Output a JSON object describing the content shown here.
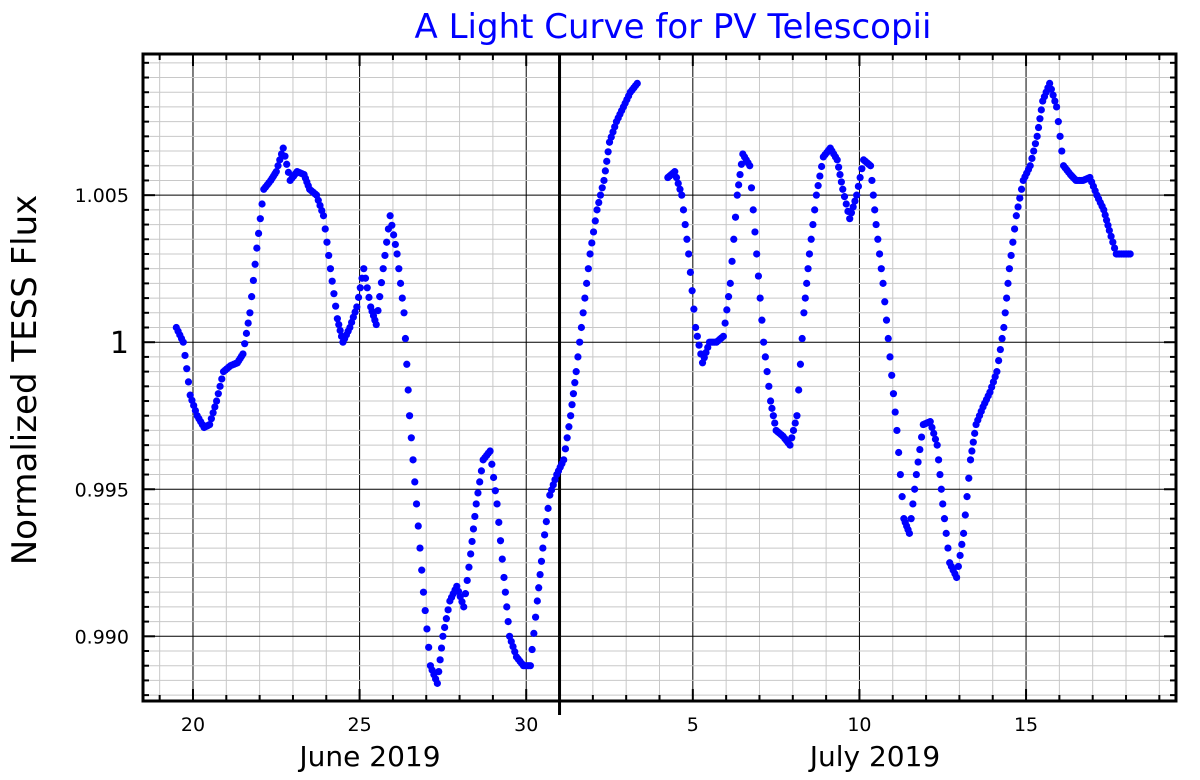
{
  "chart_data": {
    "type": "scatter",
    "title": "A Light Curve for PV Telescopii",
    "ylabel": "Normalized TESS Flux",
    "xlabel": "",
    "x_unit": "days (June 2019 continuing into July 2019)",
    "xlim": [
      "2019-06-18T12:00",
      "2019-07-19T12:00"
    ],
    "ylim": [
      0.9878,
      1.0098
    ],
    "grid": true,
    "legend": "none",
    "x_tick_labels": [
      "20",
      "25",
      "30",
      "5",
      "10",
      "15"
    ],
    "y_tick_labels": [
      "0.990",
      "0.995",
      "1",
      "1.005"
    ],
    "month_labels": [
      "June 2019",
      "July 2019"
    ],
    "month_boundary": "2019-07-01T00:00",
    "series": [
      {
        "color": "#0000ff",
        "segments": [
          {
            "x": [
              "2019-06-19T12:00",
              "2019-06-19T17:00",
              "2019-06-19T22:00",
              "2019-06-20T03:00",
              "2019-06-20T08:00",
              "2019-06-20T12:00",
              "2019-06-20T17:00",
              "2019-06-20T22:00",
              "2019-06-21T03:00",
              "2019-06-21T08:00",
              "2019-06-21T12:00",
              "2019-06-21T17:00",
              "2019-06-21T22:00",
              "2019-06-22T03:00",
              "2019-06-22T08:00",
              "2019-06-22T12:00",
              "2019-06-22T17:00",
              "2019-06-22T22:00",
              "2019-06-23T03:00",
              "2019-06-23T08:00",
              "2019-06-23T12:00",
              "2019-06-23T17:00",
              "2019-06-23T22:00",
              "2019-06-24T03:00",
              "2019-06-24T08:00",
              "2019-06-24T12:00",
              "2019-06-24T17:00",
              "2019-06-24T22:00",
              "2019-06-25T03:00",
              "2019-06-25T08:00",
              "2019-06-25T12:00",
              "2019-06-25T17:00",
              "2019-06-25T22:00",
              "2019-06-26T03:00",
              "2019-06-26T08:00",
              "2019-06-26T12:00",
              "2019-06-26T17:00",
              "2019-06-26T22:00",
              "2019-06-27T03:00",
              "2019-06-27T08:00",
              "2019-06-27T12:00",
              "2019-06-27T17:00",
              "2019-06-27T22:00",
              "2019-06-28T03:00",
              "2019-06-28T08:00",
              "2019-06-28T12:00",
              "2019-06-28T17:00",
              "2019-06-28T22:00",
              "2019-06-29T03:00",
              "2019-06-29T08:00",
              "2019-06-29T12:00",
              "2019-06-29T17:00",
              "2019-06-29T22:00",
              "2019-06-30T03:00",
              "2019-06-30T08:00",
              "2019-06-30T12:00",
              "2019-06-30T17:00",
              "2019-06-30T22:00",
              "2019-07-01T03:00",
              "2019-07-01T08:00",
              "2019-07-01T12:00",
              "2019-07-01T17:00",
              "2019-07-01T22:00",
              "2019-07-02T03:00",
              "2019-07-02T08:00",
              "2019-07-02T12:00",
              "2019-07-02T17:00",
              "2019-07-02T22:00",
              "2019-07-03T03:00",
              "2019-07-03T08:00"
            ],
            "y": [
              1.0005,
              1.0,
              0.9982,
              0.9975,
              0.9971,
              0.9972,
              0.998,
              0.999,
              0.9992,
              0.9993,
              0.9996,
              1.001,
              1.0032,
              1.0052,
              1.0055,
              1.0058,
              1.0066,
              1.0055,
              1.0058,
              1.0057,
              1.0052,
              1.005,
              1.0043,
              1.0025,
              1.0008,
              1.0,
              1.0005,
              1.0012,
              1.0025,
              1.0012,
              1.0006,
              1.0025,
              1.0043,
              1.003,
              1.001,
              0.9975,
              0.9945,
              0.9915,
              0.989,
              0.9884,
              0.99,
              0.9912,
              0.9917,
              0.991,
              0.9928,
              0.9945,
              0.996,
              0.9963,
              0.9945,
              0.992,
              0.99,
              0.9893,
              0.989,
              0.989,
              0.9912,
              0.993,
              0.9948,
              0.9955,
              0.996,
              0.9975,
              0.999,
              1.001,
              1.003,
              1.0045,
              1.0055,
              1.0068,
              1.0075,
              1.008,
              1.0085,
              1.0088
            ]
          },
          {
            "x": [
              "2019-07-04T06:00",
              "2019-07-04T11:00",
              "2019-07-04T16:00",
              "2019-07-04T21:00",
              "2019-07-05T02:00",
              "2019-07-05T07:00",
              "2019-07-05T12:00",
              "2019-07-05T17:00",
              "2019-07-05T22:00",
              "2019-07-06T03:00",
              "2019-07-06T08:00",
              "2019-07-06T12:00",
              "2019-07-06T17:00",
              "2019-07-06T22:00",
              "2019-07-07T03:00",
              "2019-07-07T08:00",
              "2019-07-07T12:00",
              "2019-07-07T17:00",
              "2019-07-07T22:00",
              "2019-07-08T03:00",
              "2019-07-08T08:00",
              "2019-07-08T12:00",
              "2019-07-08T17:00",
              "2019-07-08T22:00",
              "2019-07-09T03:00",
              "2019-07-09T08:00",
              "2019-07-09T12:00",
              "2019-07-09T17:00",
              "2019-07-09T22:00",
              "2019-07-10T03:00",
              "2019-07-10T08:00",
              "2019-07-10T12:00",
              "2019-07-10T17:00",
              "2019-07-10T22:00",
              "2019-07-11T03:00",
              "2019-07-11T08:00",
              "2019-07-11T12:00",
              "2019-07-11T17:00",
              "2019-07-11T22:00",
              "2019-07-12T03:00",
              "2019-07-12T08:00",
              "2019-07-12T12:00",
              "2019-07-12T17:00",
              "2019-07-12T22:00",
              "2019-07-13T03:00",
              "2019-07-13T08:00",
              "2019-07-13T12:00",
              "2019-07-13T17:00",
              "2019-07-13T22:00",
              "2019-07-14T03:00",
              "2019-07-14T08:00",
              "2019-07-14T12:00",
              "2019-07-14T17:00",
              "2019-07-14T22:00",
              "2019-07-15T03:00",
              "2019-07-15T08:00",
              "2019-07-15T12:00",
              "2019-07-15T17:00",
              "2019-07-15T22:00",
              "2019-07-16T03:00",
              "2019-07-16T08:00",
              "2019-07-16T12:00",
              "2019-07-16T17:00",
              "2019-07-16T22:00",
              "2019-07-17T03:00",
              "2019-07-17T08:00",
              "2019-07-17T12:00",
              "2019-07-17T17:00",
              "2019-07-17T22:00",
              "2019-07-18T03:00"
            ],
            "y": [
              1.0056,
              1.0058,
              1.005,
              1.003,
              1.0005,
              0.9993,
              1.0,
              1.0,
              1.0002,
              1.002,
              1.005,
              1.0064,
              1.006,
              1.003,
              1.0,
              0.998,
              0.997,
              0.9968,
              0.9965,
              0.9975,
              1.001,
              1.003,
              1.005,
              1.0063,
              1.0066,
              1.0062,
              1.0052,
              1.0042,
              1.005,
              1.0062,
              1.006,
              1.004,
              1.002,
              0.9995,
              0.997,
              0.994,
              0.9935,
              0.9955,
              0.9972,
              0.9973,
              0.9965,
              0.9945,
              0.9925,
              0.992,
              0.9935,
              0.996,
              0.9972,
              0.9978,
              0.9983,
              0.999,
              1.0005,
              1.0025,
              1.0043,
              1.0055,
              1.006,
              1.007,
              1.0082,
              1.0088,
              1.008,
              1.006,
              1.0057,
              1.0055,
              1.0055,
              1.0056,
              1.005,
              1.0045,
              1.0038,
              1.003,
              1.003,
              1.003
            ]
          }
        ]
      }
    ]
  }
}
